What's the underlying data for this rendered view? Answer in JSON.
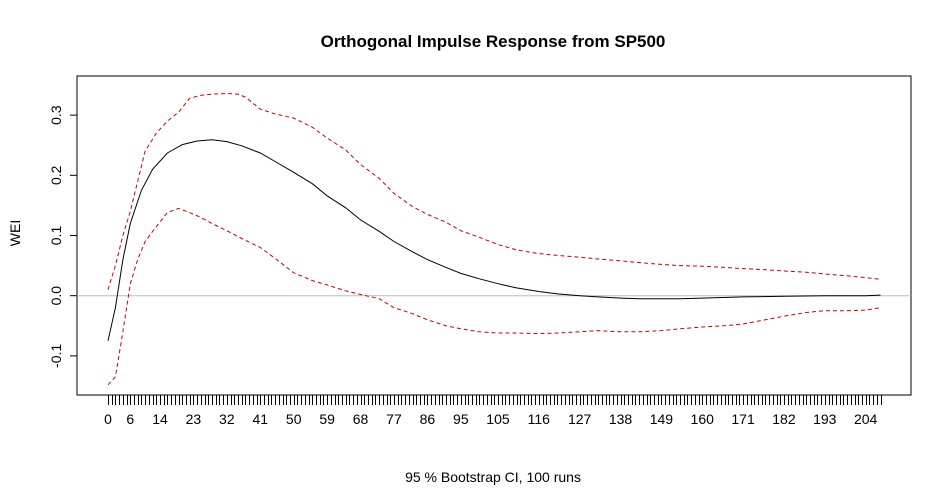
{
  "chart_data": {
    "type": "line",
    "title": "Orthogonal Impulse Response from SP500",
    "xlabel": "95 % Bootstrap CI,  100 runs",
    "ylabel": "WEI",
    "xlim": [
      0,
      208
    ],
    "ylim": [
      -0.165,
      0.365
    ],
    "x_tick_labels": [
      "0",
      "6",
      "14",
      "23",
      "32",
      "41",
      "50",
      "59",
      "68",
      "77",
      "86",
      "95",
      "105",
      "116",
      "127",
      "138",
      "149",
      "160",
      "171",
      "182",
      "193",
      "204"
    ],
    "y_tick_labels": [
      "-0.1",
      "0.0",
      "0.1",
      "0.2",
      "0.3"
    ],
    "y_tick_values": [
      -0.1,
      0.0,
      0.1,
      0.2,
      0.3
    ],
    "reference_line": 0,
    "grid": false,
    "colors": {
      "response": "#000000",
      "bounds": "#cc0000",
      "reference": "#bebebe",
      "text": "#000000"
    },
    "series": [
      {
        "role": "response",
        "x": [
          0,
          2,
          4,
          6,
          9,
          12,
          16,
          20,
          24,
          28,
          32,
          36,
          41,
          45,
          50,
          55,
          59,
          64,
          68,
          73,
          77,
          82,
          86,
          91,
          95,
          100,
          105,
          110,
          116,
          121,
          127,
          132,
          138,
          143,
          149,
          154,
          160,
          171,
          182,
          193,
          204,
          208
        ],
        "y": [
          -0.075,
          -0.02,
          0.06,
          0.12,
          0.175,
          0.21,
          0.237,
          0.251,
          0.257,
          0.259,
          0.256,
          0.249,
          0.237,
          0.223,
          0.205,
          0.186,
          0.166,
          0.146,
          0.126,
          0.107,
          0.09,
          0.073,
          0.06,
          0.047,
          0.037,
          0.028,
          0.02,
          0.013,
          0.007,
          0.003,
          0.0,
          -0.002,
          -0.004,
          -0.005,
          -0.005,
          -0.005,
          -0.004,
          -0.002,
          -0.001,
          0.0,
          0.0,
          0.001
        ]
      },
      {
        "role": "upper",
        "x": [
          0,
          2,
          4,
          6,
          8,
          10,
          13,
          16,
          19,
          22,
          25,
          28,
          32,
          35,
          37,
          39,
          41,
          45,
          50,
          55,
          59,
          64,
          68,
          73,
          77,
          82,
          86,
          91,
          95,
          100,
          105,
          110,
          116,
          121,
          127,
          132,
          138,
          143,
          149,
          154,
          160,
          166,
          171,
          177,
          182,
          188,
          193,
          199,
          204,
          208
        ],
        "y": [
          0.01,
          0.05,
          0.1,
          0.14,
          0.19,
          0.24,
          0.27,
          0.29,
          0.305,
          0.328,
          0.333,
          0.335,
          0.336,
          0.335,
          0.33,
          0.32,
          0.31,
          0.302,
          0.295,
          0.28,
          0.262,
          0.242,
          0.218,
          0.195,
          0.17,
          0.148,
          0.135,
          0.122,
          0.108,
          0.097,
          0.085,
          0.076,
          0.07,
          0.067,
          0.064,
          0.061,
          0.058,
          0.055,
          0.052,
          0.05,
          0.049,
          0.047,
          0.045,
          0.043,
          0.041,
          0.039,
          0.036,
          0.033,
          0.03,
          0.027
        ]
      },
      {
        "role": "lower",
        "x": [
          0,
          2,
          4,
          6,
          8,
          10,
          13,
          16,
          19,
          22,
          25,
          28,
          32,
          36,
          41,
          45,
          50,
          55,
          59,
          64,
          68,
          73,
          77,
          82,
          86,
          91,
          95,
          100,
          105,
          110,
          116,
          121,
          127,
          132,
          138,
          143,
          149,
          154,
          160,
          166,
          171,
          177,
          182,
          188,
          193,
          199,
          204,
          208
        ],
        "y": [
          -0.148,
          -0.135,
          -0.06,
          0.02,
          0.06,
          0.09,
          0.115,
          0.138,
          0.145,
          0.138,
          0.13,
          0.12,
          0.108,
          0.095,
          0.08,
          0.062,
          0.038,
          0.025,
          0.018,
          0.008,
          0.002,
          -0.005,
          -0.02,
          -0.03,
          -0.04,
          -0.05,
          -0.055,
          -0.06,
          -0.062,
          -0.062,
          -0.063,
          -0.062,
          -0.06,
          -0.058,
          -0.06,
          -0.06,
          -0.058,
          -0.055,
          -0.052,
          -0.05,
          -0.047,
          -0.04,
          -0.034,
          -0.028,
          -0.025,
          -0.025,
          -0.024,
          -0.02
        ]
      }
    ]
  }
}
